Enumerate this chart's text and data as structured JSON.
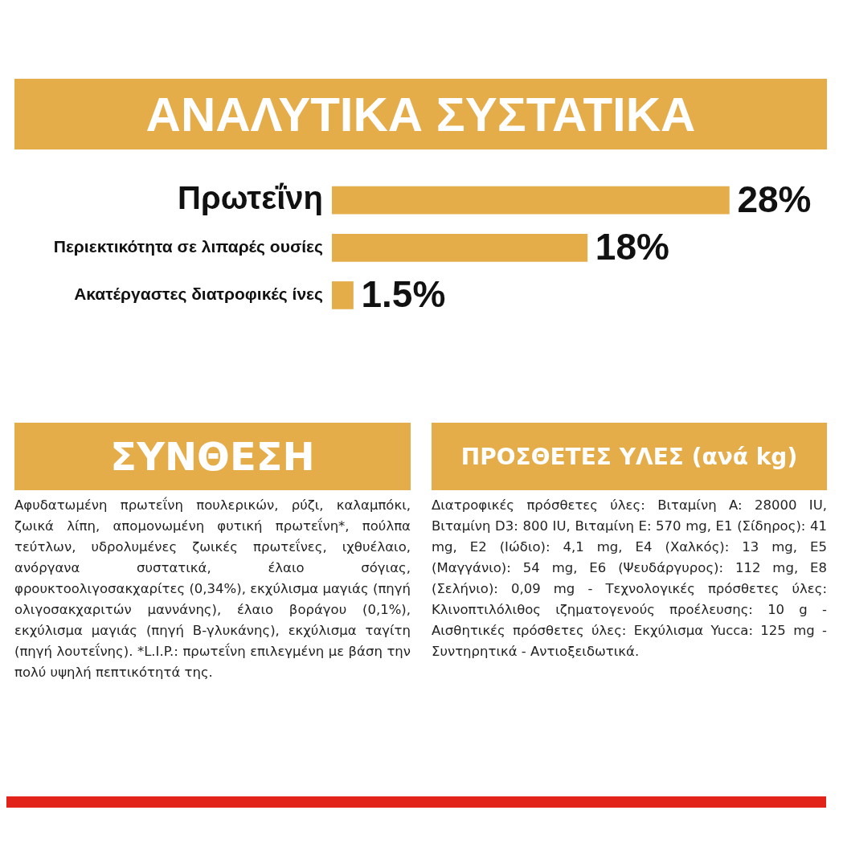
{
  "chart_data": {
    "type": "bar",
    "orientation": "horizontal",
    "title": "ΑΝΑΛΥΤΙΚΑ ΣΥΣΤΑΤΙΚΑ",
    "categories": [
      "Πρωτεΐνη",
      "Περιεκτικότητα σε λιπαρές ουσίες",
      "Ακατέργαστες διατροφικές ίνες"
    ],
    "values": [
      28,
      18,
      1.5
    ],
    "color": "#e4ad4a",
    "value_labels": [
      "28%",
      "18%",
      "1.5%"
    ],
    "grid": false,
    "legend": false,
    "tick_labels": "y",
    "annotations": [
      "ΣΥΝΘΕΣΗ",
      "Αφυδατωμένη πρωτεΐνη πουλερικών, ρύζι, καλαμπόκι, ζωικά λίπη, απομονωμένη φυτική πρωτεΐνη*, πούλπα τεύτλων, υδρολυμένες ζωικές πρωτεΐνες, ιχθυέλαιο, ανόργανα συστατικά, έλαιο σόγιας, φρουκτοολιγοσακχαρίτες (0,34%), εκχύλισμα μαγιάς (πηγή ολιγοσακχαριτών μαννάνης), έλαιο βοράγου (0,1%), εκχύλισμα μαγιάς (πηγή Β-γλυκάνης), εκχύλισμα ταγίτη (πηγή λουτεΐνης). *L.I.P.: πρωτεΐνη επιλεγμένη με βάση την πολύ υψηλή πεπτικότητά της.",
      "ΠΡΟΣΘΕΤΕΣ ΥΛΕΣ (ανά kg)",
      "Διατροφικές πρόσθετες ύλες: Βιταμίνη A: 28000 IU, Βιταμίνη D3: 800 IU, Βιταμίνη E: 570 mg, E1 (Σίδηρος): 41 mg, E2 (Ιώδιο): 4,1 mg, E4 (Χαλκός): 13 mg, E5 (Μαγγάνιο): 54 mg, E6 (Ψευδάργυρος): 112 mg, E8 (Σελήνιο): 0,09 mg - Τεχνολογικές πρόσθετες ύλες: Κλινοπτιλόλιθος ιζηματογενούς προέλευσης: 10 g - Αισθητικές πρόσθετες ύλες: Εκχύλισμα Yucca: 125 mg - Συντηρητικά - Αντιοξειδωτικά."
    ]
  }
}
